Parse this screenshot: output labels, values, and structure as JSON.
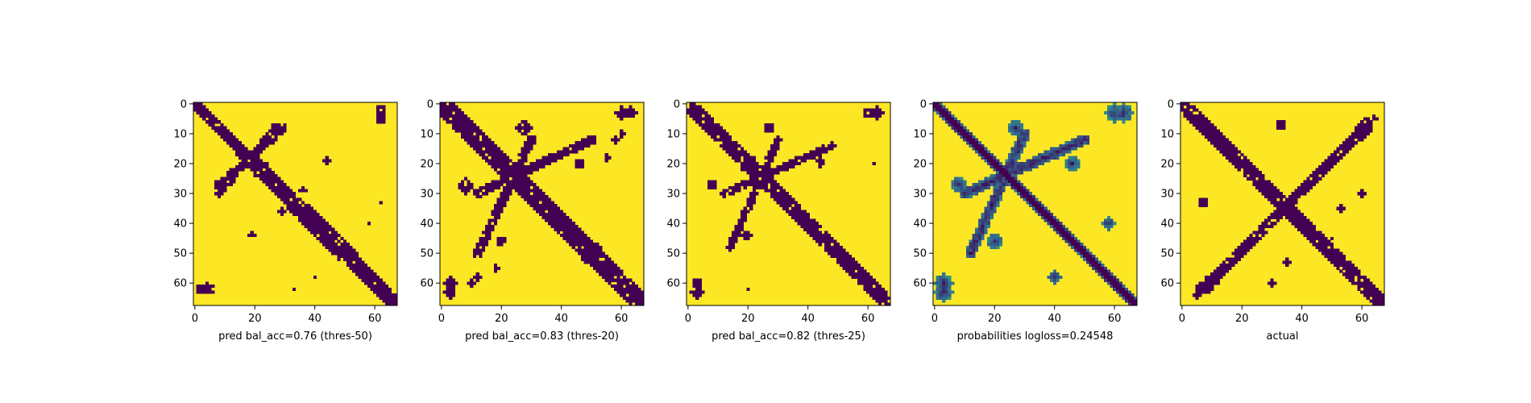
{
  "chart_data": [
    {
      "type": "heatmap",
      "variant": "binary",
      "xlabel": "pred bal_acc=0.76 (thres-50)",
      "xticks": [
        0,
        20,
        40,
        60
      ],
      "yticks": [
        0,
        10,
        20,
        30,
        40,
        50,
        60
      ],
      "xlim": [
        0,
        67
      ],
      "ylim": [
        67,
        0
      ],
      "grid_size": 68,
      "colormap": [
        "#440154",
        "#fde725"
      ],
      "diagonal_band": {
        "width": [
          2,
          3,
          4,
          3
        ],
        "blobs": [
          [
            22,
            22,
            3
          ],
          [
            50,
            50,
            3
          ]
        ]
      },
      "cross_band": {
        "from": [
          8,
          27
        ],
        "to": [
          30,
          8
        ],
        "width": 1.2
      },
      "islands": [
        [
          62,
          2,
          1.5
        ],
        [
          5,
          62,
          1.5
        ],
        [
          27,
          8,
          1.6
        ],
        [
          44,
          19,
          1.2
        ],
        [
          29,
          36,
          1.0
        ],
        [
          61,
          4,
          1.2
        ],
        [
          40,
          58,
          0.8
        ],
        [
          62,
          33,
          0.8
        ]
      ]
    },
    {
      "type": "heatmap",
      "variant": "binary",
      "xlabel": "pred bal_acc=0.83 (thres-20)",
      "xticks": [
        0,
        20,
        40,
        60
      ],
      "yticks": [
        0,
        10,
        20,
        30,
        40,
        50,
        60
      ],
      "xlim": [
        0,
        67
      ],
      "ylim": [
        67,
        0
      ],
      "grid_size": 68,
      "colormap": [
        "#440154",
        "#fde725"
      ],
      "diagonal_band": {
        "width": [
          4,
          4,
          4,
          4
        ],
        "blobs": [
          [
            20,
            20,
            3.5
          ],
          [
            50,
            50,
            4
          ],
          [
            34,
            34,
            2.5
          ]
        ]
      },
      "cross_band": {
        "from": [
          12,
          30
        ],
        "to": [
          50,
          12
        ],
        "width": 1.5
      },
      "islands": [
        [
          63,
          3,
          2.2
        ],
        [
          3,
          60,
          2.2
        ],
        [
          27,
          8,
          2.2
        ],
        [
          8,
          28,
          2.2
        ],
        [
          46,
          20,
          1.5
        ],
        [
          20,
          46,
          1.5
        ],
        [
          55,
          18,
          1
        ],
        [
          12,
          58,
          1.2
        ],
        [
          60,
          10,
          1.2
        ]
      ]
    },
    {
      "type": "heatmap",
      "variant": "binary",
      "xlabel": "pred bal_acc=0.82 (thres-25)",
      "xticks": [
        0,
        20,
        40,
        60
      ],
      "yticks": [
        0,
        10,
        20,
        30,
        40,
        50,
        60
      ],
      "xlim": [
        0,
        67
      ],
      "ylim": [
        67,
        0
      ],
      "grid_size": 68,
      "colormap": [
        "#440154",
        "#fde725"
      ],
      "diagonal_band": {
        "width": [
          3,
          3,
          3,
          3
        ],
        "blobs": [
          [
            20,
            20,
            3
          ],
          [
            48,
            48,
            2.5
          ],
          [
            34,
            34,
            2
          ]
        ]
      },
      "cross_band": {
        "from": [
          12,
          30
        ],
        "to": [
          48,
          14
        ],
        "width": 1.3
      },
      "islands": [
        [
          63,
          3,
          2
        ],
        [
          3,
          60,
          1.8
        ],
        [
          27,
          8,
          1.8
        ],
        [
          8,
          27,
          1.8
        ],
        [
          44,
          19,
          1.2
        ],
        [
          20,
          44,
          1.2
        ],
        [
          62,
          20,
          0.8
        ]
      ]
    },
    {
      "type": "heatmap",
      "variant": "continuous",
      "xlabel": "probabilities logloss=0.24548",
      "xticks": [
        0,
        20,
        40,
        60
      ],
      "yticks": [
        0,
        10,
        20,
        30,
        40,
        50,
        60
      ],
      "xlim": [
        0,
        67
      ],
      "ylim": [
        67,
        0
      ],
      "grid_size": 68,
      "colormap": [
        "#440154",
        "#31688e",
        "#35b779",
        "#fde725"
      ],
      "diagonal_band": {
        "width": [
          2.5,
          2.5,
          2.5,
          2.5
        ],
        "blobs": []
      },
      "cross_band": {
        "from": [
          10,
          30
        ],
        "to": [
          50,
          12
        ],
        "width": 1.8
      },
      "islands": [
        [
          63,
          3,
          3
        ],
        [
          3,
          60,
          3
        ],
        [
          27,
          8,
          2.5
        ],
        [
          8,
          27,
          2.5
        ],
        [
          46,
          20,
          2.5
        ],
        [
          20,
          46,
          2.5
        ],
        [
          58,
          40,
          2
        ],
        [
          40,
          58,
          2
        ]
      ]
    },
    {
      "type": "heatmap",
      "variant": "binary",
      "xlabel": "actual",
      "xticks": [
        0,
        20,
        40,
        60
      ],
      "yticks": [
        0,
        10,
        20,
        30,
        40,
        50,
        60
      ],
      "xlim": [
        0,
        67
      ],
      "ylim": [
        67,
        0
      ],
      "grid_size": 68,
      "colormap": [
        "#440154",
        "#fde725"
      ],
      "diagonal_band": {
        "width": [
          3,
          3,
          3,
          3
        ],
        "blobs": [
          [
            32,
            32,
            2.5
          ],
          [
            20,
            20,
            2
          ]
        ]
      },
      "cross_band": {
        "from": [
          8,
          62
        ],
        "to": [
          62,
          6
        ],
        "width": 1.5
      },
      "islands": [
        [
          7,
          33,
          1.5
        ],
        [
          33,
          7,
          1.5
        ],
        [
          35,
          53,
          1
        ],
        [
          53,
          35,
          1
        ],
        [
          60,
          30,
          1.2
        ],
        [
          30,
          60,
          1.2
        ],
        [
          45,
          50,
          0.8
        ],
        [
          64,
          5,
          1.3
        ]
      ]
    }
  ]
}
